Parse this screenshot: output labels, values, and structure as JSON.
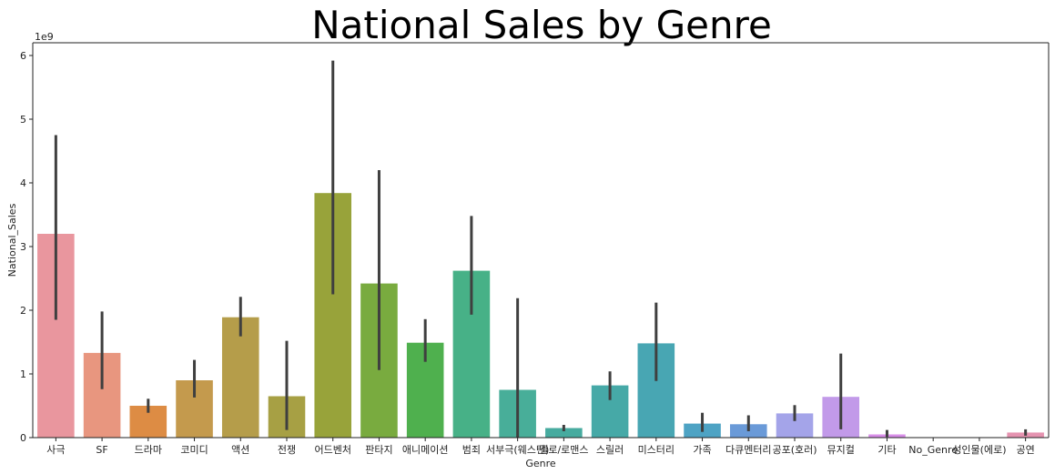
{
  "chart_data": {
    "type": "bar",
    "title": "National Sales by Genre",
    "xlabel": "Genre",
    "ylabel": "National_Sales",
    "y_offset_label": "1e9",
    "ylim": [
      0,
      6.2
    ],
    "yticks": [
      0,
      1,
      2,
      3,
      4,
      5,
      6
    ],
    "ytick_labels": [
      "0",
      "1",
      "2",
      "3",
      "4",
      "5",
      "6"
    ],
    "grid": false,
    "legend": "none",
    "categories": [
      "사극",
      "SF",
      "드라마",
      "코미디",
      "액션",
      "전쟁",
      "어드벤처",
      "판타지",
      "애니메이션",
      "범죄",
      "서부극(웨스턴)",
      "멜로/로맨스",
      "스릴러",
      "미스터리",
      "가족",
      "다큐멘터리",
      "공포(호러)",
      "뮤지컬",
      "기타",
      "No_Genre",
      "성인물(에로)",
      "공연"
    ],
    "values": [
      3.2,
      1.33,
      0.5,
      0.9,
      1.89,
      0.65,
      3.84,
      2.42,
      1.49,
      2.62,
      0.75,
      0.15,
      0.82,
      1.48,
      0.22,
      0.21,
      0.38,
      0.64,
      0.05,
      0.0,
      0.0,
      0.08
    ],
    "error_low": [
      1.85,
      0.76,
      0.39,
      0.63,
      1.59,
      0.12,
      2.25,
      1.06,
      1.19,
      1.93,
      0.0,
      0.1,
      0.59,
      0.89,
      0.09,
      0.1,
      0.26,
      0.13,
      0.01,
      0.0,
      0.0,
      0.03
    ],
    "error_high": [
      4.75,
      1.98,
      0.61,
      1.22,
      2.21,
      1.52,
      5.92,
      4.2,
      1.86,
      3.48,
      2.19,
      0.2,
      1.04,
      2.12,
      0.39,
      0.35,
      0.51,
      1.32,
      0.12,
      0.0,
      0.0,
      0.13
    ],
    "colors": [
      "#e9969e",
      "#e8967f",
      "#dd8c44",
      "#c49a4d",
      "#b59d4a",
      "#a7a044",
      "#98a33a",
      "#79ab3f",
      "#4fb04e",
      "#47b187",
      "#48ae99",
      "#47ab9f",
      "#46a9a7",
      "#48a6b3",
      "#4ea3c4",
      "#6a9ad8",
      "#a4a4e9",
      "#c29ae9",
      "#d88ee8",
      "#e58cd8",
      "#e991c4",
      "#e593b0"
    ]
  }
}
